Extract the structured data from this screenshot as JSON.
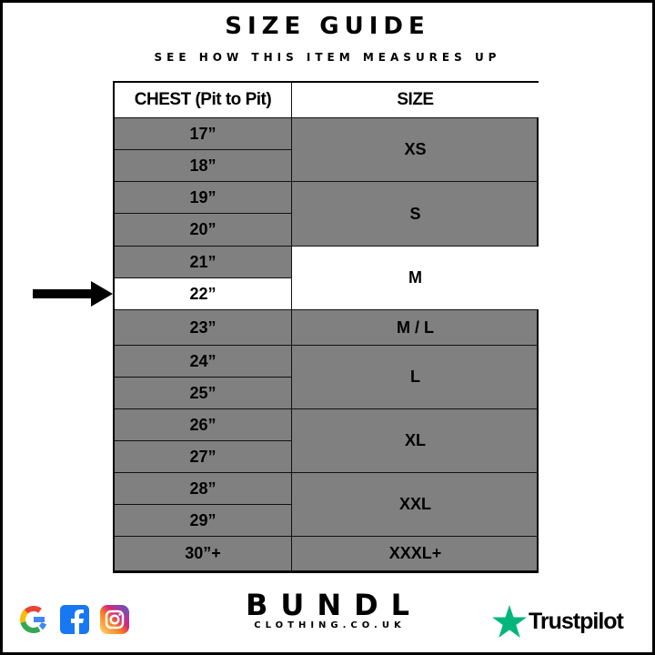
{
  "title": "SIZE GUIDE",
  "subtitle": "SEE HOW THIS ITEM MEASURES UP",
  "table": {
    "headers": [
      "CHEST (Pit to Pit)",
      "SIZE"
    ],
    "chest": [
      "17”",
      "18”",
      "19”",
      "20”",
      "21”",
      "22”",
      "23”",
      "24”",
      "25”",
      "26”",
      "27”",
      "28”",
      "29”",
      "30”+"
    ],
    "sizes": [
      "XS",
      "S",
      "M",
      "M / L",
      "L",
      "XL",
      "XXL",
      "XXXL+"
    ],
    "highlighted_size": "M",
    "highlighted_chest": "22”"
  },
  "colors": {
    "row_fill": "#808080",
    "highlight": "#ffffff",
    "trustpilot_star": "#00b67a"
  },
  "footer": {
    "brand": "BUNDL",
    "brand_sub": "CLOTHING.CO.UK",
    "review": "Trustpilot",
    "social_icons": [
      "google-icon",
      "facebook-icon",
      "instagram-icon"
    ]
  }
}
